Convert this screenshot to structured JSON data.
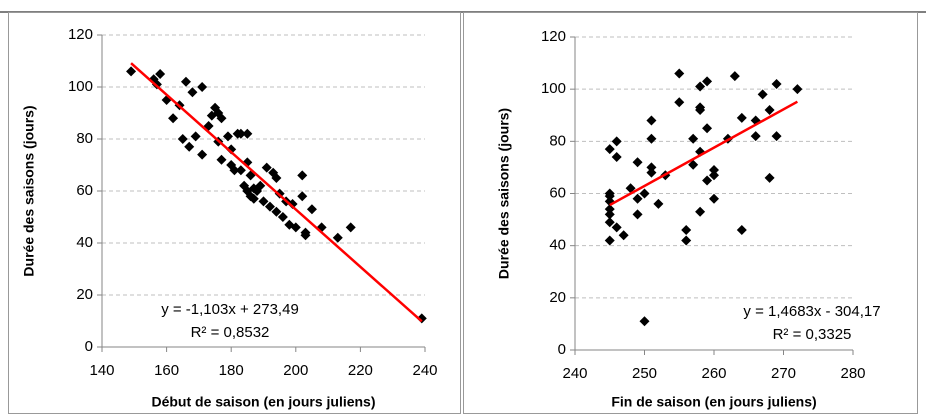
{
  "chart_data": [
    {
      "type": "scatter",
      "color": "#000000",
      "x_label": "Début de saison (en jours juliens)",
      "y_label": "Durée des saisons (jours)",
      "x": [
        149,
        156,
        157,
        158,
        160,
        162,
        164,
        165,
        166,
        167,
        168,
        169,
        171,
        171,
        173,
        174,
        175,
        176,
        176,
        177,
        177,
        179,
        180,
        180,
        181,
        182,
        183,
        183,
        184,
        185,
        185,
        185,
        186,
        186,
        187,
        187,
        188,
        189,
        190,
        191,
        192,
        193,
        194,
        194,
        195,
        196,
        197,
        198,
        199,
        200,
        202,
        202,
        203,
        203,
        205,
        208,
        213,
        217,
        239
      ],
      "values": [
        106,
        103,
        101,
        105,
        95,
        88,
        93,
        80,
        102,
        77,
        98,
        81,
        100,
        74,
        85,
        89,
        92,
        90,
        79,
        72,
        88,
        81,
        70,
        76,
        68,
        82,
        82,
        68,
        62,
        82,
        60,
        71,
        58,
        66,
        61,
        57,
        60,
        62,
        56,
        69,
        54,
        67,
        65,
        52,
        59,
        50,
        56,
        47,
        55,
        46,
        58,
        66,
        43,
        44,
        53,
        46,
        42,
        46,
        11
      ],
      "xlim": [
        140,
        240
      ],
      "xticks": [
        140,
        160,
        180,
        200,
        220,
        240
      ],
      "ylim": [
        0,
        120
      ],
      "yticks": [
        0,
        20,
        40,
        60,
        80,
        100,
        120
      ],
      "grid": true,
      "trendline": {
        "slope": -1.103,
        "intercept": 273.49,
        "color": "#ff0000",
        "equation": "y = -1,103x + 273,49",
        "r_squared": "R² = 0,8532"
      }
    },
    {
      "type": "scatter",
      "color": "#000000",
      "x_label": "Fin de saison (en jours juliens)",
      "y_label": "Durée des saisons (jours)",
      "x": [
        245,
        245,
        245,
        245,
        245,
        245,
        245,
        245,
        246,
        246,
        246,
        247,
        248,
        249,
        249,
        249,
        250,
        250,
        251,
        251,
        251,
        251,
        252,
        253,
        255,
        255,
        256,
        256,
        257,
        257,
        258,
        258,
        258,
        258,
        258,
        259,
        259,
        259,
        260,
        260,
        260,
        262,
        263,
        264,
        264,
        266,
        266,
        267,
        268,
        268,
        269,
        269,
        272
      ],
      "values": [
        42,
        49,
        52,
        54,
        57,
        59,
        60,
        77,
        47,
        74,
        80,
        44,
        62,
        72,
        52,
        58,
        60,
        11,
        68,
        70,
        81,
        88,
        56,
        67,
        106,
        95,
        46,
        42,
        71,
        81,
        101,
        93,
        92,
        76,
        53,
        65,
        85,
        103,
        58,
        67,
        69,
        81,
        105,
        46,
        89,
        82,
        88,
        98,
        66,
        92,
        102,
        82,
        100
      ],
      "xlim": [
        240,
        280
      ],
      "xticks": [
        240,
        250,
        260,
        270,
        280
      ],
      "ylim": [
        0,
        120
      ],
      "yticks": [
        0,
        20,
        40,
        60,
        80,
        100,
        120
      ],
      "grid": true,
      "trendline": {
        "slope": 1.4683,
        "intercept": -304.17,
        "color": "#ff0000",
        "equation": "y = 1,4683x - 304,17",
        "r_squared": "R² = 0,3325"
      }
    }
  ]
}
